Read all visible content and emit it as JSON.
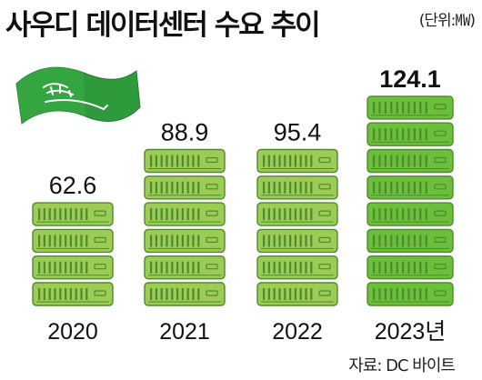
{
  "title": "사우디 데이터센터 수요 추이",
  "unit": "(단위:㎿)",
  "source": "자료: DC 바이트",
  "colors": {
    "server_fill": "#9ccc55",
    "server_fill_last": "#6cbf3a",
    "server_stroke": "#4e8a2e",
    "flag_green": "#2e9a3b"
  },
  "icons": {
    "flag": "saudi-flag-icon",
    "bar_unit": "server-rack-icon"
  },
  "chart_data": {
    "type": "bar",
    "categories": [
      "2020",
      "2021",
      "2022",
      "2023년"
    ],
    "values": [
      62.6,
      88.9,
      95.4,
      124.1
    ],
    "value_labels": [
      "62.6",
      "88.9",
      "95.4",
      "124.1"
    ],
    "title": "사우디 데이터센터 수요 추이",
    "xlabel": "",
    "ylabel": "",
    "ylim": [
      0,
      130
    ],
    "grid": false,
    "legend": "none"
  }
}
